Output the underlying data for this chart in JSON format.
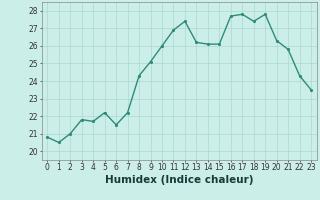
{
  "x": [
    0,
    1,
    2,
    3,
    4,
    5,
    6,
    7,
    8,
    9,
    10,
    11,
    12,
    13,
    14,
    15,
    16,
    17,
    18,
    19,
    20,
    21,
    22,
    23
  ],
  "y": [
    20.8,
    20.5,
    21.0,
    21.8,
    21.7,
    22.2,
    21.5,
    22.2,
    24.3,
    25.1,
    26.0,
    26.9,
    27.4,
    26.2,
    26.1,
    26.1,
    27.7,
    27.8,
    27.4,
    27.8,
    26.3,
    25.8,
    24.3,
    23.5
  ],
  "line_color": "#2e8b7a",
  "marker_color": "#2e8b7a",
  "bg_color": "#cceee8",
  "grid_color": "#aad8d0",
  "xlabel": "Humidex (Indice chaleur)",
  "ylim": [
    19.5,
    28.5
  ],
  "xlim": [
    -0.5,
    23.5
  ],
  "yticks": [
    20,
    21,
    22,
    23,
    24,
    25,
    26,
    27,
    28
  ],
  "xticks": [
    0,
    1,
    2,
    3,
    4,
    5,
    6,
    7,
    8,
    9,
    10,
    11,
    12,
    13,
    14,
    15,
    16,
    17,
    18,
    19,
    20,
    21,
    22,
    23
  ],
  "tick_fontsize": 5.5,
  "xlabel_fontsize": 7.5,
  "line_width": 1.0,
  "marker_size": 2.5
}
